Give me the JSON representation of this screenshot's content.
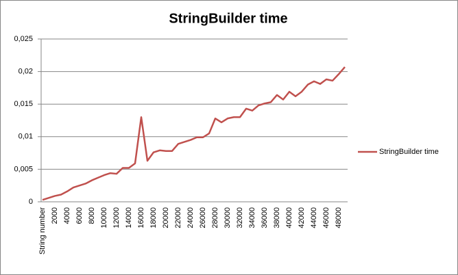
{
  "chart_data": {
    "type": "line",
    "title": "StringBuilder time",
    "categories": [
      "String number",
      null,
      "2000",
      null,
      "4000",
      null,
      "6000",
      null,
      "8000",
      null,
      "10000",
      null,
      "12000",
      null,
      "14000",
      null,
      "16000",
      null,
      "18000",
      null,
      "20000",
      null,
      "22000",
      null,
      "24000",
      null,
      "26000",
      null,
      "28000",
      null,
      "30000",
      null,
      "32000",
      null,
      "34000",
      null,
      "36000",
      null,
      "38000",
      null,
      "40000",
      null,
      "42000",
      null,
      "44000",
      null,
      "46000",
      null,
      "48000",
      null
    ],
    "series": [
      {
        "name": "StringBuilder time",
        "color": "#c0504d",
        "values": [
          0.0003,
          0.0006,
          0.0009,
          0.0011,
          0.0016,
          0.0022,
          0.0025,
          0.0028,
          0.0033,
          0.0037,
          0.0041,
          0.0044,
          0.0043,
          0.0052,
          0.0052,
          0.0059,
          0.013,
          0.0063,
          0.0076,
          0.0079,
          0.0078,
          0.0078,
          0.0089,
          0.0092,
          0.0095,
          0.0099,
          0.0099,
          0.0105,
          0.0128,
          0.0122,
          0.0128,
          0.013,
          0.013,
          0.0143,
          0.014,
          0.0148,
          0.0151,
          0.0153,
          0.0164,
          0.0157,
          0.0169,
          0.0162,
          0.0169,
          0.018,
          0.0185,
          0.0181,
          0.0188,
          0.0186,
          0.0196,
          0.0207
        ]
      }
    ],
    "ylim": [
      0,
      0.025
    ],
    "yticks": [
      0,
      {
        "value": 0.005,
        "label": "0,005"
      },
      {
        "value": 0.01,
        "label": "0,01"
      },
      {
        "value": 0.015,
        "label": "0,015"
      },
      {
        "value": 0.02,
        "label": "0,02"
      },
      {
        "value": 0.025,
        "label": "0,025"
      }
    ],
    "grid": true,
    "legend": "right"
  }
}
